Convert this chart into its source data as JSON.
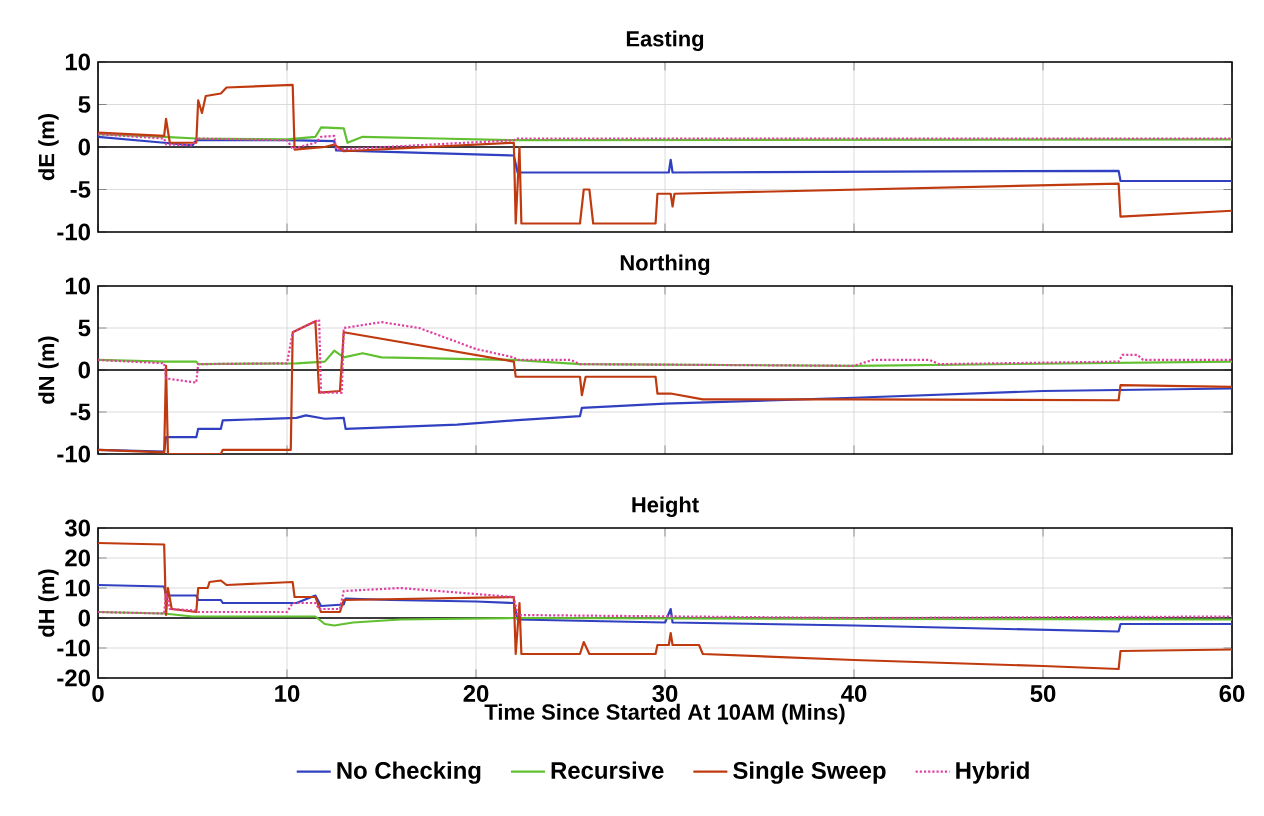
{
  "chart_data": [
    {
      "type": "line",
      "title": "Easting",
      "ylabel": "dE (m)",
      "xlim": [
        0,
        60
      ],
      "xticks": [
        0,
        10,
        20,
        30,
        40,
        50,
        60
      ],
      "ylim": [
        -10,
        10
      ],
      "yticks": [
        -10,
        -5,
        0,
        5,
        10
      ],
      "tick_labels": "y",
      "grid": true,
      "legend": false,
      "ref_lines": [
        {
          "axis": "y",
          "value": 0,
          "color": "#000000"
        }
      ],
      "series": [
        {
          "color": "#3040c0",
          "line_style": "solid",
          "x": [
            0,
            3.5,
            5,
            5.2,
            10,
            12.5,
            12.6,
            22,
            22.2,
            30.2,
            30.3,
            30.4,
            54,
            54.1,
            60
          ],
          "values": [
            1.2,
            0.5,
            0.2,
            0.8,
            0.8,
            0.7,
            -0.4,
            -1,
            -3,
            -3,
            -1.5,
            -3,
            -2.8,
            -4,
            -4
          ]
        },
        {
          "color": "#60c030",
          "line_style": "solid",
          "x": [
            0,
            3.5,
            5.2,
            10,
            11.5,
            11.8,
            13,
            13.2,
            14,
            18,
            22,
            60
          ],
          "values": [
            1.5,
            1.2,
            1,
            0.9,
            1.2,
            2.3,
            2.2,
            0.5,
            1.2,
            1,
            0.8,
            0.9
          ]
        },
        {
          "color": "#c03a10",
          "line_style": "solid",
          "x": [
            0,
            3.5,
            3.6,
            3.8,
            5.2,
            5.3,
            5.5,
            5.7,
            6.5,
            6.8,
            10.3,
            10.4,
            12,
            12.5,
            13,
            22,
            22.1,
            22.3,
            22.4,
            25.5,
            25.7,
            26,
            26.2,
            29.5,
            29.6,
            30.3,
            30.4,
            30.5,
            54,
            54.1,
            60
          ],
          "values": [
            1.7,
            1.3,
            3.3,
            0.5,
            0.5,
            5.5,
            4,
            6,
            6.3,
            7,
            7.3,
            -0.3,
            0,
            0.3,
            -0.5,
            0.5,
            -9,
            0,
            -9,
            -9,
            -5,
            -5,
            -9,
            -9,
            -5.5,
            -5.5,
            -7,
            -5.5,
            -4.3,
            -8.2,
            -7.5
          ]
        },
        {
          "color": "#e040a0",
          "line_style": "dotted",
          "x": [
            0,
            3.5,
            3.6,
            5,
            5.2,
            10,
            10.3,
            11.5,
            11.8,
            12.5,
            12.6,
            22,
            22.2,
            60
          ],
          "values": [
            1.5,
            1,
            0.3,
            0.2,
            1,
            0.8,
            -0.2,
            0.5,
            1.2,
            1.3,
            -0.3,
            0.8,
            1,
            1
          ]
        }
      ]
    },
    {
      "type": "line",
      "title": "Northing",
      "ylabel": "dN (m)",
      "xlim": [
        0,
        60
      ],
      "xticks": [
        0,
        10,
        20,
        30,
        40,
        50,
        60
      ],
      "ylim": [
        -10,
        10
      ],
      "yticks": [
        -10,
        -5,
        0,
        5,
        10
      ],
      "tick_labels": "y",
      "grid": true,
      "legend": false,
      "ref_lines": [
        {
          "axis": "y",
          "value": 0,
          "color": "#000000"
        }
      ],
      "series": [
        {
          "color": "#3040c0",
          "line_style": "solid",
          "x": [
            0,
            3.5,
            3.6,
            5.2,
            5.3,
            6.5,
            6.6,
            10.5,
            11,
            12,
            13,
            13.1,
            19,
            22,
            25.5,
            25.6,
            30,
            40,
            50,
            60
          ],
          "values": [
            -9.5,
            -9.7,
            -8,
            -8,
            -7,
            -7,
            -6,
            -5.7,
            -5.4,
            -5.8,
            -5.7,
            -7,
            -6.5,
            -6,
            -5.5,
            -4.5,
            -4,
            -3.3,
            -2.5,
            -2.2
          ]
        },
        {
          "color": "#60c030",
          "line_style": "solid",
          "x": [
            0,
            3.5,
            5.2,
            5.3,
            10.5,
            12,
            12.5,
            13,
            14,
            15,
            22,
            25.5,
            40,
            60
          ],
          "values": [
            1.2,
            1,
            1,
            0.7,
            0.8,
            1,
            2.3,
            1.5,
            2,
            1.5,
            1.2,
            0.7,
            0.5,
            1
          ]
        },
        {
          "color": "#c03a10",
          "line_style": "solid",
          "x": [
            0,
            3.5,
            3.6,
            3.7,
            5.2,
            6.5,
            6.6,
            10.2,
            10.3,
            11.5,
            11.7,
            12.8,
            13,
            22,
            22.1,
            25.5,
            25.6,
            25.8,
            29.5,
            29.6,
            30.3,
            32,
            40,
            54,
            54.1,
            60
          ],
          "values": [
            -9.5,
            -9.8,
            0.5,
            -10,
            -10,
            -10,
            -9.5,
            -9.5,
            4.5,
            5.8,
            -2.7,
            -2.5,
            4.5,
            1,
            -0.8,
            -0.8,
            -3,
            -0.8,
            -0.8,
            -2.8,
            -2.8,
            -3.5,
            -3.5,
            -3.6,
            -1.8,
            -2
          ]
        },
        {
          "color": "#e040a0",
          "line_style": "dotted",
          "x": [
            0,
            3.5,
            3.6,
            5.2,
            5.3,
            10,
            10.3,
            11.7,
            11.8,
            12.9,
            13,
            15,
            17,
            20,
            22,
            22.2,
            25,
            25.5,
            40,
            41,
            44,
            44.5,
            54,
            54.2,
            55,
            55.3,
            60
          ],
          "values": [
            1.2,
            0.8,
            -1,
            -1.5,
            0.7,
            0.8,
            4.5,
            6,
            -2.7,
            -2.7,
            5,
            5.7,
            5,
            2.5,
            1.5,
            1.2,
            1.2,
            0.7,
            0.5,
            1.2,
            1.2,
            0.7,
            1,
            1.8,
            1.8,
            1.2,
            1.2
          ]
        }
      ]
    },
    {
      "type": "line",
      "title": "Height",
      "ylabel": "dH (m)",
      "xlabel": "Time Since Started At 10AM (Mins)",
      "xlim": [
        0,
        60
      ],
      "xticks": [
        0,
        10,
        20,
        30,
        40,
        50,
        60
      ],
      "ylim": [
        -20,
        30
      ],
      "yticks": [
        -20,
        -10,
        0,
        10,
        20,
        30
      ],
      "grid": true,
      "legend": "bottom",
      "ref_lines": [
        {
          "axis": "y",
          "value": 0,
          "color": "#000000"
        }
      ],
      "series": [
        {
          "name": "No Checking",
          "color": "#3040c0",
          "line_style": "solid",
          "x": [
            0,
            3.5,
            3.6,
            5.2,
            5.3,
            6.5,
            6.6,
            10.5,
            11.5,
            11.8,
            13,
            13.1,
            15.5,
            20,
            22,
            22.2,
            30,
            30.3,
            30.4,
            40,
            54,
            54.1,
            60
          ],
          "values": [
            11,
            10.5,
            7.5,
            7.5,
            6,
            6,
            5,
            5,
            7.5,
            4,
            4.5,
            6.5,
            6,
            5.5,
            5,
            -0.5,
            -1.5,
            3,
            -1.5,
            -2.5,
            -4.5,
            -2,
            -2
          ]
        },
        {
          "name": "Recursive",
          "color": "#60c030",
          "line_style": "solid",
          "x": [
            0,
            3.5,
            5,
            11.5,
            12,
            12.5,
            13.5,
            16,
            22,
            60
          ],
          "values": [
            2,
            1.5,
            0.5,
            0.5,
            -2,
            -2.5,
            -1.5,
            -0.5,
            0,
            -0.5
          ]
        },
        {
          "name": "Single Sweep",
          "color": "#c03a10",
          "line_style": "solid",
          "x": [
            0,
            3.5,
            3.6,
            3.7,
            3.9,
            5.2,
            5.3,
            5.8,
            5.9,
            6.5,
            6.8,
            10.3,
            10.4,
            11.5,
            11.8,
            12.8,
            13,
            22,
            22.1,
            22.3,
            22.4,
            25.5,
            25.7,
            26,
            29.5,
            29.6,
            30.2,
            30.3,
            30.4,
            31.8,
            32,
            40,
            50,
            54,
            54.1,
            60
          ],
          "values": [
            25,
            24.5,
            1,
            10,
            3,
            2,
            10,
            10,
            12,
            12.5,
            11,
            12,
            7,
            7,
            2,
            2,
            6,
            7,
            -12,
            5,
            -12,
            -12,
            -8,
            -12,
            -12,
            -9,
            -9,
            -5,
            -9,
            -9,
            -12,
            -14,
            -16,
            -17,
            -11,
            -10.5
          ]
        },
        {
          "name": "Hybrid",
          "color": "#e040a0",
          "line_style": "dotted",
          "x": [
            0,
            3.5,
            3.6,
            3.8,
            5.2,
            5.3,
            10,
            10.3,
            11.5,
            11.7,
            12.8,
            13,
            16,
            22,
            22.2,
            40,
            60
          ],
          "values": [
            2,
            1.5,
            8,
            3,
            2.5,
            2,
            2,
            5,
            5,
            3,
            3,
            9,
            10,
            7,
            1,
            0,
            0.5
          ]
        }
      ]
    }
  ]
}
